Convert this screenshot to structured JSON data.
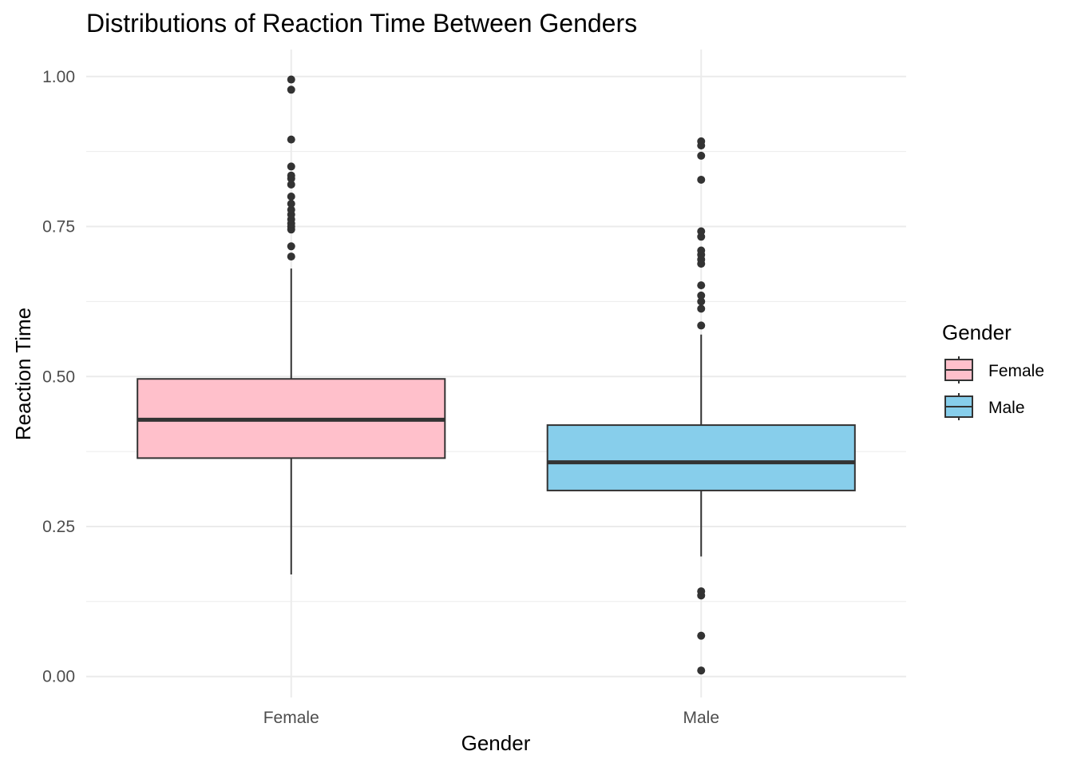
{
  "chart_data": {
    "type": "boxplot",
    "title": "Distributions of Reaction Time Between Genders",
    "xlabel": "Gender",
    "ylabel": "Reaction Time",
    "ylim": [
      -0.035,
      1.045
    ],
    "yticks": [
      0.0,
      0.25,
      0.5,
      0.75,
      1.0
    ],
    "ytick_labels": [
      "0.00",
      "0.25",
      "0.50",
      "0.75",
      "1.00"
    ],
    "grid": true,
    "legend": {
      "title": "Gender",
      "position": "right"
    },
    "categories": [
      "Female",
      "Male"
    ],
    "series": [
      {
        "name": "Female",
        "color": "#FFC0CB",
        "min": 0.17,
        "q1": 0.364,
        "median": 0.428,
        "q3": 0.496,
        "max": 0.68,
        "outliers": [
          0.7,
          0.717,
          0.745,
          0.75,
          0.755,
          0.762,
          0.77,
          0.778,
          0.788,
          0.8,
          0.82,
          0.83,
          0.835,
          0.85,
          0.895,
          0.978,
          0.995
        ]
      },
      {
        "name": "Male",
        "color": "#87CEEB",
        "min": 0.2,
        "q1": 0.31,
        "median": 0.357,
        "q3": 0.419,
        "max": 0.57,
        "outliers": [
          0.01,
          0.068,
          0.135,
          0.142,
          0.585,
          0.613,
          0.625,
          0.635,
          0.652,
          0.688,
          0.695,
          0.703,
          0.71,
          0.733,
          0.742,
          0.828,
          0.868,
          0.885,
          0.892
        ]
      }
    ]
  }
}
